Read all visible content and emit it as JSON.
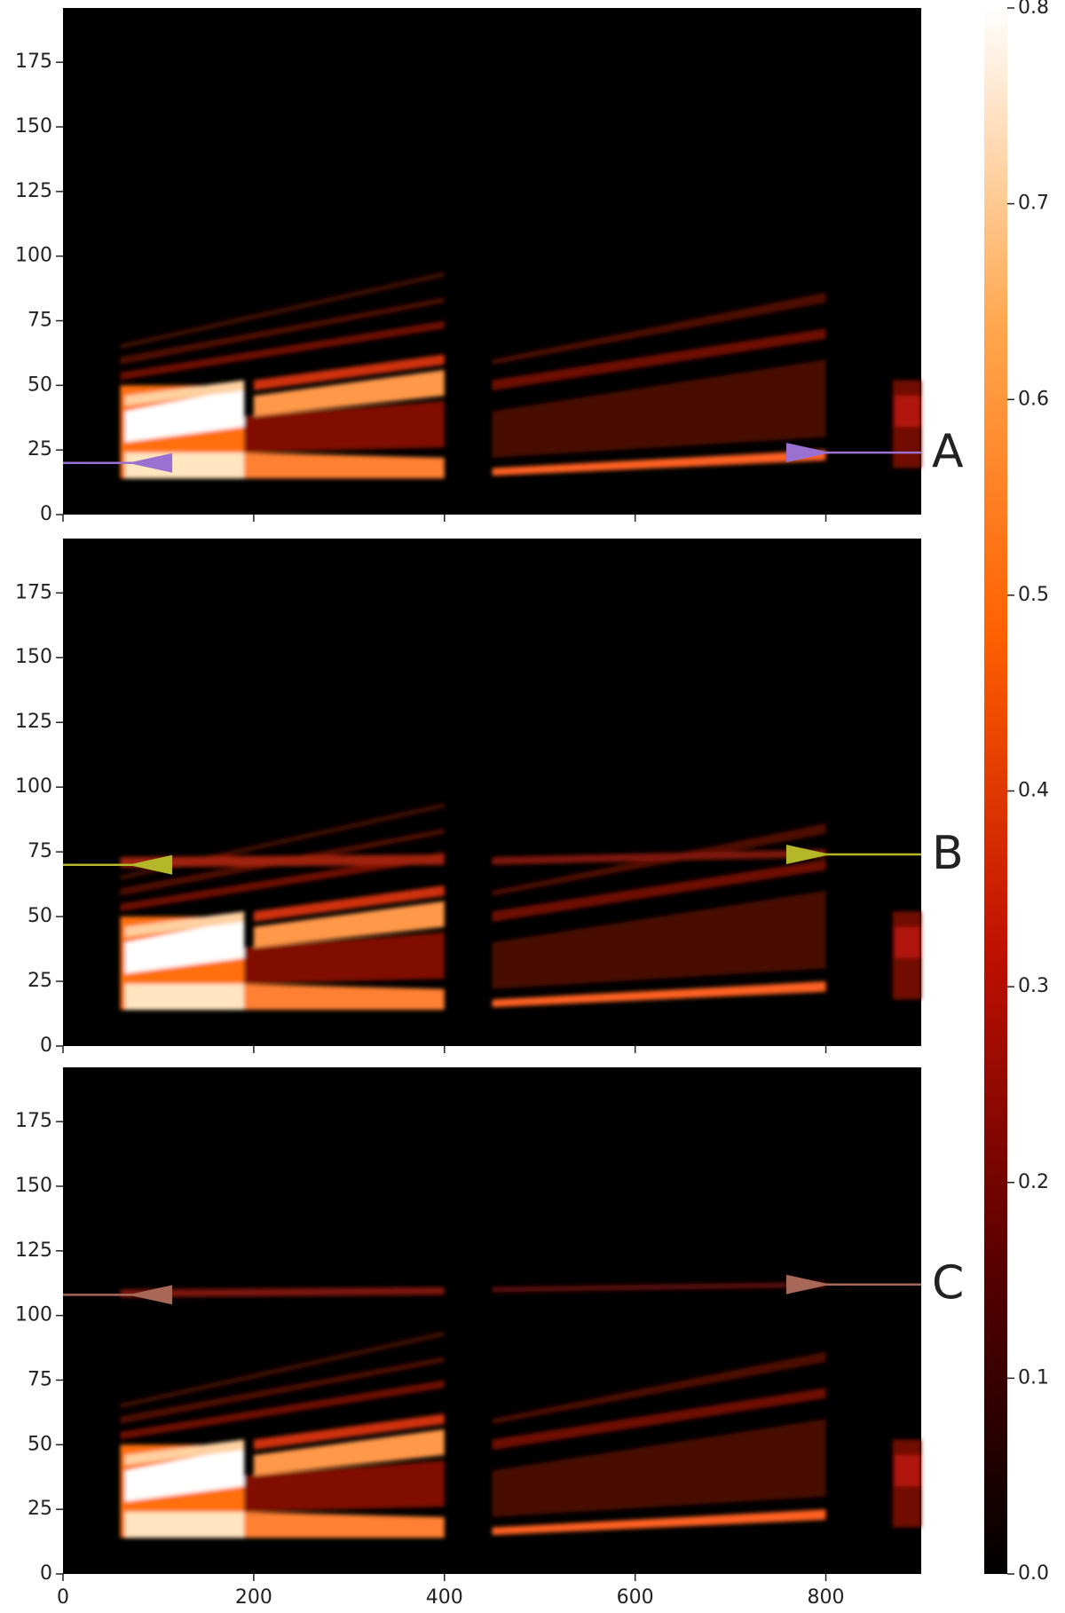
{
  "chart_data": [
    {
      "type": "heatmap",
      "xlim": [
        0,
        900
      ],
      "ylim": [
        0,
        196
      ],
      "xticks": [
        0,
        200,
        400,
        600,
        800
      ],
      "yticks": [
        0,
        25,
        50,
        75,
        100,
        125,
        150,
        175
      ],
      "annotation": {
        "text": "A",
        "text_color": "#7b48d0",
        "color": "#9a70d0",
        "left": {
          "x": 68,
          "y": 20
        },
        "right": {
          "x": 805,
          "y": 24
        }
      }
    },
    {
      "type": "heatmap",
      "xlim": [
        0,
        900
      ],
      "ylim": [
        0,
        196
      ],
      "xticks": [
        0,
        200,
        400,
        600,
        800
      ],
      "yticks": [
        0,
        25,
        50,
        75,
        100,
        125,
        150,
        175
      ],
      "annotation": {
        "text": "B",
        "text_color": "#d0bc50",
        "color": "#b4b828",
        "left": {
          "x": 68,
          "y": 70
        },
        "right": {
          "x": 805,
          "y": 74
        }
      }
    },
    {
      "type": "heatmap",
      "xlim": [
        0,
        900
      ],
      "ylim": [
        0,
        196
      ],
      "xticks": [
        0,
        200,
        400,
        600,
        800
      ],
      "yticks": [
        0,
        25,
        50,
        75,
        100,
        125,
        150,
        175
      ],
      "xticklabels": true,
      "annotation": {
        "text": "C",
        "text_color": "#e08a88",
        "color": "#a86858",
        "left": {
          "x": 68,
          "y": 108
        },
        "right": {
          "x": 805,
          "y": 112
        }
      }
    },
    {
      "type": "colorbar",
      "zlim": [
        0,
        0.8
      ],
      "zticks": [
        {
          "value": 0,
          "label": "0.0"
        },
        0.1,
        0.2,
        0.3,
        0.4,
        0.5,
        0.6,
        0.7,
        0.8
      ],
      "colors": [
        "#000000",
        "#5a0000",
        "#c01000",
        "#ff6000",
        "#ffa850",
        "#ffffff"
      ]
    }
  ]
}
